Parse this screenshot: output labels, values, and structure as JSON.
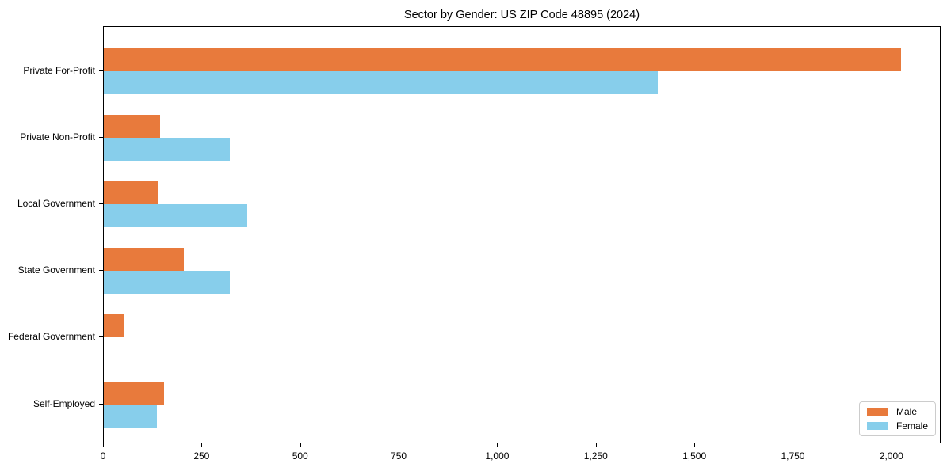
{
  "chart_data": {
    "type": "bar",
    "orientation": "horizontal",
    "title": "Sector by Gender: US ZIP Code 48895 (2024)",
    "categories": [
      "Private For-Profit",
      "Private Non-Profit",
      "Local Government",
      "State Government",
      "Federal Government",
      "Self-Employed"
    ],
    "series": [
      {
        "name": "Male",
        "color": "#E87A3C",
        "values": [
          2022,
          143,
          137,
          203,
          52,
          153
        ]
      },
      {
        "name": "Female",
        "color": "#87CEEB",
        "values": [
          1405,
          320,
          364,
          320,
          0,
          135
        ]
      }
    ],
    "xlabel": "",
    "ylabel": "",
    "xlim": [
      0,
      2125
    ],
    "xticks": {
      "values": [
        0,
        250,
        500,
        750,
        1000,
        1250,
        1500,
        1750,
        2000
      ],
      "labels": [
        "0",
        "250",
        "500",
        "750",
        "1,000",
        "1,250",
        "1,500",
        "1,750",
        "2,000"
      ]
    },
    "grid": false,
    "legend": {
      "position": "lower right",
      "entries": [
        "Male",
        "Female"
      ]
    }
  }
}
